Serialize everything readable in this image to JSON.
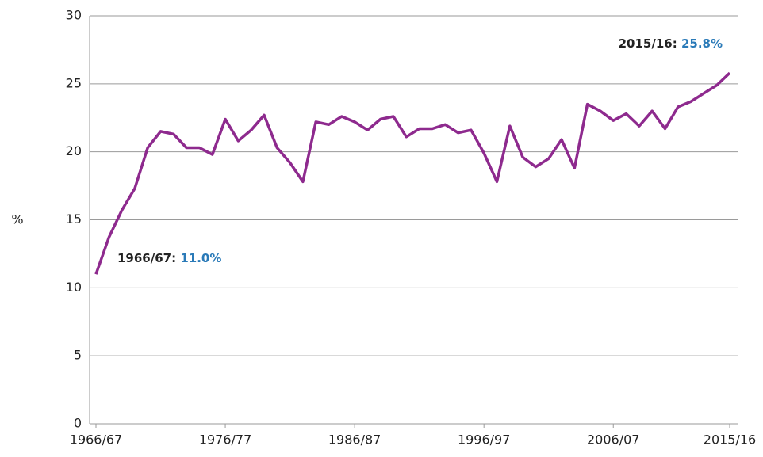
{
  "chart_data": {
    "type": "line",
    "y_label": "%",
    "categories": [
      "1966/67",
      null,
      null,
      null,
      null,
      null,
      null,
      null,
      null,
      null,
      "1976/77",
      null,
      null,
      null,
      null,
      null,
      null,
      null,
      null,
      null,
      "1986/87",
      null,
      null,
      null,
      null,
      null,
      null,
      null,
      null,
      null,
      "1996/97",
      null,
      null,
      null,
      null,
      null,
      null,
      null,
      null,
      null,
      "2006/07",
      null,
      null,
      null,
      null,
      null,
      null,
      null,
      null,
      "2015/16"
    ],
    "values": [
      11.0,
      13.7,
      15.7,
      17.3,
      20.3,
      21.5,
      21.3,
      20.3,
      20.3,
      19.8,
      22.4,
      20.8,
      21.6,
      22.7,
      20.3,
      19.2,
      17.8,
      22.2,
      22.0,
      22.6,
      22.2,
      21.6,
      22.4,
      22.6,
      21.1,
      21.7,
      21.7,
      22.0,
      21.4,
      21.6,
      19.9,
      17.8,
      21.9,
      19.6,
      18.9,
      19.5,
      20.9,
      18.8,
      23.5,
      23.0,
      22.3,
      22.8,
      21.9,
      23.0,
      21.7,
      23.3,
      23.7,
      24.3,
      24.9,
      25.8
    ],
    "color": "#8e2a8e",
    "ylim": [
      0,
      30
    ],
    "yticks": [
      0,
      5,
      10,
      15,
      20,
      25,
      30
    ],
    "grid": true,
    "annotations": [
      {
        "text": "1966/67:",
        "value_label": "11.0%"
      },
      {
        "text": "2015/16:",
        "value_label": "25.8%"
      }
    ],
    "annotation_value_color": "#2a7ab8"
  }
}
